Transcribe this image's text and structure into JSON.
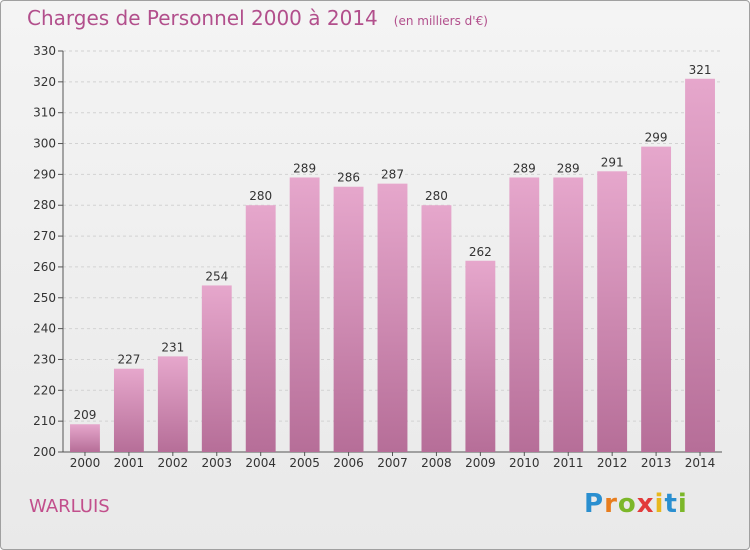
{
  "header": {
    "title": "Charges de Personnel 2000 à 2014",
    "subtitle": "(en milliers d'€)"
  },
  "footer": {
    "commune": "WARLUIS",
    "logo": {
      "letters": [
        "P",
        "r",
        "o",
        "x",
        "i",
        "t",
        "i"
      ],
      "colors": [
        "#2a8fd0",
        "#e87d1e",
        "#7cb729",
        "#e23b3b",
        "#e8b81e",
        "#2a8fd0",
        "#7cb729"
      ]
    }
  },
  "colors": {
    "bar_light": "#e6a7cc",
    "bar_dark": "#b66e98",
    "title": "#b24f8c"
  },
  "chart_data": {
    "type": "bar",
    "title": "Charges de Personnel 2000 à 2014",
    "subtitle": "(en milliers d'€)",
    "xlabel": "",
    "ylabel": "",
    "categories": [
      "2000",
      "2001",
      "2002",
      "2003",
      "2004",
      "2005",
      "2006",
      "2007",
      "2008",
      "2009",
      "2010",
      "2011",
      "2012",
      "2013",
      "2014"
    ],
    "values": [
      209,
      227,
      231,
      254,
      280,
      289,
      286,
      287,
      280,
      262,
      289,
      289,
      291,
      299,
      321
    ],
    "ylim": [
      200,
      330
    ],
    "yticks": [
      200,
      210,
      220,
      230,
      240,
      250,
      260,
      270,
      280,
      290,
      300,
      310,
      320,
      330
    ],
    "grid": true,
    "legend": "none"
  }
}
